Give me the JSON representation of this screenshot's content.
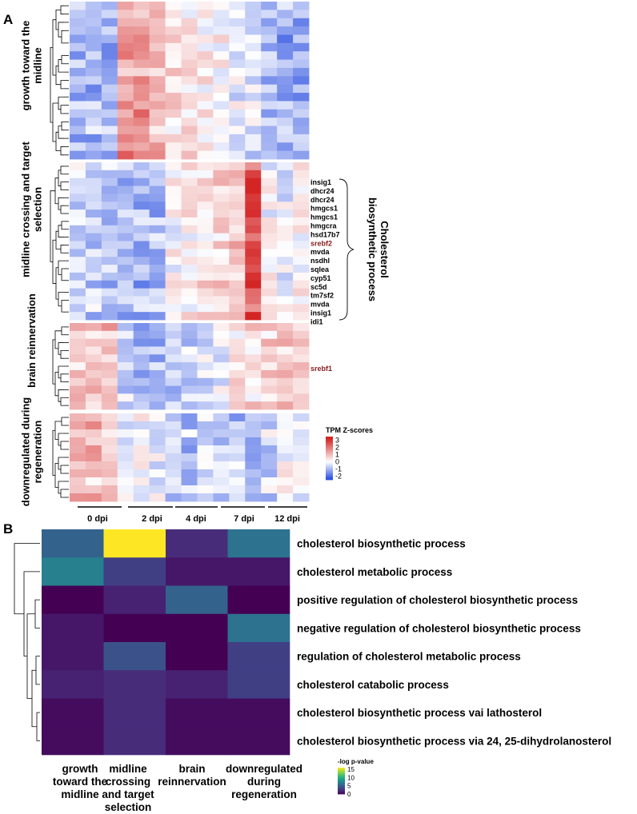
{
  "panels": {
    "a": "A",
    "b": "B"
  },
  "chart_data": [
    {
      "type": "heatmap",
      "panel": "A",
      "clusters": [
        {
          "name": "growth toward the midline",
          "rows": 19
        },
        {
          "name": "midline crossing and target selection",
          "rows": 20
        },
        {
          "name": "brain reinnervation",
          "rows": 11
        },
        {
          "name": "downregulated during regeneration",
          "rows": 11
        }
      ],
      "n_columns": 15,
      "timepoints": [
        "0 dpi",
        "2 dpi",
        "4 dpi",
        "7 dpi",
        "12 dpi"
      ],
      "genes": [
        {
          "label": "insig1",
          "highlight": false
        },
        {
          "label": "dhcr24",
          "highlight": false
        },
        {
          "label": "dhcr24",
          "highlight": false
        },
        {
          "label": "hmgcs1",
          "highlight": false
        },
        {
          "label": "hmgcs1",
          "highlight": false
        },
        {
          "label": "hmgcra",
          "highlight": false
        },
        {
          "label": "hsd17b7",
          "highlight": false
        },
        {
          "label": "srebf2",
          "highlight": true
        },
        {
          "label": "mvda",
          "highlight": false
        },
        {
          "label": "nsdhl",
          "highlight": false
        },
        {
          "label": "sqlea",
          "highlight": false
        },
        {
          "label": "cyp51",
          "highlight": false
        },
        {
          "label": "sc5d",
          "highlight": false
        },
        {
          "label": "tm7sf2",
          "highlight": false
        },
        {
          "label": "mvda",
          "highlight": false
        },
        {
          "label": "insig1",
          "highlight": false
        },
        {
          "label": "idi1",
          "highlight": false
        }
      ],
      "extra_gene": {
        "label": "srebf1",
        "highlight": true
      },
      "bracket_label": [
        "Cholesterol",
        "biosynthetic process"
      ],
      "legend": {
        "title": "TPM Z-scores",
        "ticks": [
          "3",
          "2",
          "1",
          "0",
          "-1",
          "-2"
        ],
        "range": [
          -2.5,
          3.5
        ],
        "colors": [
          "#2a4fe0",
          "#ffffff",
          "#d42525"
        ]
      }
    },
    {
      "type": "heatmap",
      "panel": "B",
      "columns": [
        "growth toward the midline",
        "midline crossing and target selection",
        "brain reinnervation",
        "downregulated during regeneration"
      ],
      "column_label_lines": [
        [
          "growth",
          "toward the",
          "midline"
        ],
        [
          "midline",
          "crossing",
          "and target",
          "selection"
        ],
        [
          "brain",
          "reinnervation"
        ],
        [
          "downregulated",
          "during",
          "regeneration"
        ]
      ],
      "rows": [
        "cholesterol biosynthetic process",
        "cholesterol metabolic process",
        "positive regulation of cholesterol biosynthetic process",
        "negative regulation of cholesterol biosynthetic process",
        "regulation of cholesterol metabolic process",
        "cholesterol catabolic process",
        "cholesterol biosynthetic process vai lathosterol",
        "cholesterol biosynthetic process via 24, 25-dihydrolanosterol"
      ],
      "values": [
        [
          5,
          16,
          2,
          6
        ],
        [
          7,
          3,
          1,
          1
        ],
        [
          0,
          1.5,
          5,
          0
        ],
        [
          1,
          0,
          0,
          6
        ],
        [
          1,
          4,
          0,
          3
        ],
        [
          1.5,
          2,
          1.5,
          3
        ],
        [
          0.5,
          2,
          0.5,
          0.5
        ],
        [
          0.5,
          2,
          0.5,
          0.5
        ]
      ],
      "legend": {
        "title": "-log p-value",
        "ticks": [
          "15",
          "10",
          "5",
          "0"
        ],
        "range": [
          0,
          16
        ]
      }
    }
  ]
}
